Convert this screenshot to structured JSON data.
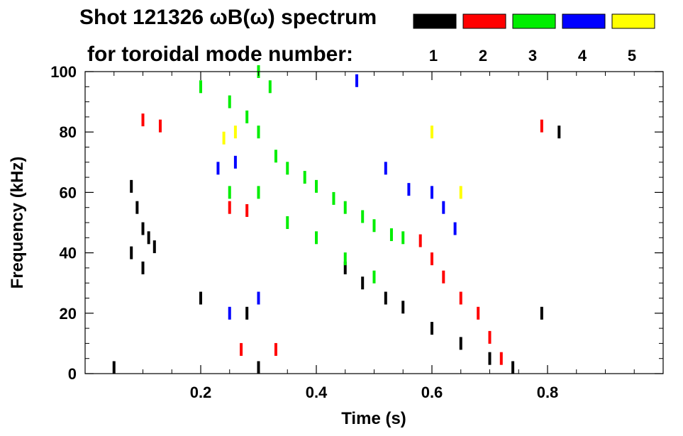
{
  "chart_data": {
    "type": "scatter",
    "title_line1": "Shot 121326 ωB(ω) spectrum",
    "title_line2": "for toroidal mode number:",
    "xlabel": "Time (s)",
    "ylabel": "Frequency (kHz)",
    "xlim": [
      0.0,
      1.0
    ],
    "ylim": [
      0,
      100
    ],
    "x_ticks": [
      0.2,
      0.4,
      0.6,
      0.8
    ],
    "x_tick_labels": [
      "0.2",
      "0.4",
      "0.6",
      "0.8"
    ],
    "y_ticks": [
      0,
      20,
      40,
      60,
      80,
      100
    ],
    "y_tick_labels": [
      "0",
      "20",
      "40",
      "60",
      "80",
      "100"
    ],
    "legend": [
      {
        "label": "1",
        "color": "#000000"
      },
      {
        "label": "2",
        "color": "#ff0000"
      },
      {
        "label": "3",
        "color": "#00ee00"
      },
      {
        "label": "4",
        "color": "#0000ff"
      },
      {
        "label": "5",
        "color": "#ffff00"
      }
    ],
    "series": [
      {
        "name": "n=1",
        "color": "#000000",
        "points": [
          [
            0.08,
            62
          ],
          [
            0.09,
            55
          ],
          [
            0.1,
            48
          ],
          [
            0.11,
            45
          ],
          [
            0.12,
            42
          ],
          [
            0.08,
            40
          ],
          [
            0.1,
            35
          ],
          [
            0.2,
            25
          ],
          [
            0.28,
            20
          ],
          [
            0.45,
            35
          ],
          [
            0.48,
            30
          ],
          [
            0.52,
            25
          ],
          [
            0.55,
            22
          ],
          [
            0.6,
            15
          ],
          [
            0.65,
            10
          ],
          [
            0.7,
            5
          ],
          [
            0.74,
            2
          ],
          [
            0.79,
            20
          ],
          [
            0.82,
            80
          ],
          [
            0.05,
            2
          ],
          [
            0.3,
            2
          ]
        ]
      },
      {
        "name": "n=2",
        "color": "#ff0000",
        "points": [
          [
            0.1,
            84
          ],
          [
            0.13,
            82
          ],
          [
            0.25,
            55
          ],
          [
            0.28,
            54
          ],
          [
            0.58,
            44
          ],
          [
            0.6,
            38
          ],
          [
            0.62,
            32
          ],
          [
            0.65,
            25
          ],
          [
            0.68,
            20
          ],
          [
            0.7,
            12
          ],
          [
            0.72,
            5
          ],
          [
            0.79,
            82
          ],
          [
            0.27,
            8
          ],
          [
            0.33,
            8
          ]
        ]
      },
      {
        "name": "n=3",
        "color": "#00ee00",
        "points": [
          [
            0.28,
            85
          ],
          [
            0.3,
            80
          ],
          [
            0.33,
            72
          ],
          [
            0.35,
            68
          ],
          [
            0.38,
            65
          ],
          [
            0.4,
            62
          ],
          [
            0.43,
            58
          ],
          [
            0.45,
            55
          ],
          [
            0.48,
            52
          ],
          [
            0.5,
            49
          ],
          [
            0.53,
            46
          ],
          [
            0.55,
            45
          ],
          [
            0.25,
            60
          ],
          [
            0.3,
            60
          ],
          [
            0.35,
            50
          ],
          [
            0.4,
            45
          ],
          [
            0.45,
            38
          ],
          [
            0.5,
            32
          ],
          [
            0.2,
            95
          ],
          [
            0.25,
            90
          ],
          [
            0.3,
            100
          ],
          [
            0.32,
            95
          ]
        ]
      },
      {
        "name": "n=4",
        "color": "#0000ff",
        "points": [
          [
            0.23,
            68
          ],
          [
            0.26,
            70
          ],
          [
            0.52,
            68
          ],
          [
            0.56,
            61
          ],
          [
            0.6,
            60
          ],
          [
            0.62,
            55
          ],
          [
            0.64,
            48
          ],
          [
            0.47,
            97
          ],
          [
            0.25,
            20
          ],
          [
            0.3,
            25
          ]
        ]
      },
      {
        "name": "n=5",
        "color": "#ffff00",
        "points": [
          [
            0.24,
            78
          ],
          [
            0.26,
            80
          ],
          [
            0.6,
            80
          ],
          [
            0.65,
            60
          ]
        ]
      }
    ]
  }
}
